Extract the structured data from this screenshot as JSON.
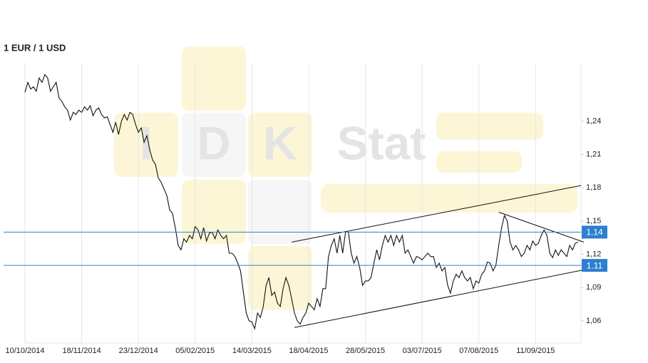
{
  "chart_data": {
    "type": "line",
    "title": "1 EUR / 1 USD",
    "color": "#111111",
    "watermark": [
      "I",
      "D",
      "K",
      "Stat"
    ],
    "categories": [
      "10/10/2014",
      null,
      null,
      null,
      null,
      null,
      null,
      null,
      null,
      null,
      null,
      null,
      null,
      null,
      null,
      null,
      null,
      null,
      null,
      null,
      "18/11/2014",
      null,
      null,
      null,
      null,
      null,
      null,
      null,
      null,
      null,
      null,
      null,
      null,
      null,
      null,
      null,
      null,
      null,
      null,
      null,
      "23/12/2014",
      null,
      null,
      null,
      null,
      null,
      null,
      null,
      null,
      null,
      null,
      null,
      null,
      null,
      null,
      null,
      null,
      null,
      null,
      null,
      "05/02/2015",
      null,
      null,
      null,
      null,
      null,
      null,
      null,
      null,
      null,
      null,
      null,
      null,
      null,
      null,
      null,
      null,
      null,
      null,
      null,
      "14/03/2015",
      null,
      null,
      null,
      null,
      null,
      null,
      null,
      null,
      null,
      null,
      null,
      null,
      null,
      null,
      null,
      null,
      null,
      null,
      null,
      "18/04/2015",
      null,
      null,
      null,
      null,
      null,
      null,
      null,
      null,
      null,
      null,
      null,
      null,
      null,
      null,
      null,
      null,
      null,
      null,
      null,
      "28/05/2015",
      null,
      null,
      null,
      null,
      null,
      null,
      null,
      null,
      null,
      null,
      null,
      null,
      null,
      null,
      null,
      null,
      null,
      null,
      null,
      "03/07/2015",
      null,
      null,
      null,
      null,
      null,
      null,
      null,
      null,
      null,
      null,
      null,
      null,
      null,
      null,
      null,
      null,
      null,
      null,
      null,
      "07/08/2015",
      null,
      null,
      null,
      null,
      null,
      null,
      null,
      null,
      null,
      null,
      null,
      null,
      null,
      null,
      null,
      null,
      null,
      null,
      null,
      "11/09/2015",
      null,
      null,
      null,
      null,
      null,
      null,
      null,
      null,
      null,
      null,
      null,
      null,
      null,
      null,
      null
    ],
    "values": [
      1.266,
      1.275,
      1.269,
      1.271,
      1.267,
      1.279,
      1.275,
      1.282,
      1.279,
      1.267,
      1.271,
      1.275,
      1.261,
      1.258,
      1.253,
      1.25,
      1.241,
      1.248,
      1.246,
      1.25,
      1.248,
      1.253,
      1.25,
      1.254,
      1.245,
      1.25,
      1.252,
      1.246,
      1.243,
      1.244,
      1.237,
      1.23,
      1.239,
      1.228,
      1.24,
      1.246,
      1.241,
      1.248,
      1.246,
      1.237,
      1.23,
      1.234,
      1.221,
      1.227,
      1.214,
      1.205,
      1.201,
      1.189,
      1.185,
      1.179,
      1.173,
      1.16,
      1.157,
      1.144,
      1.128,
      1.124,
      1.134,
      1.131,
      1.137,
      1.134,
      1.145,
      1.142,
      1.134,
      1.144,
      1.132,
      1.139,
      1.14,
      1.134,
      1.142,
      1.137,
      1.134,
      1.137,
      1.121,
      1.121,
      1.118,
      1.112,
      1.105,
      1.086,
      1.067,
      1.06,
      1.059,
      1.053,
      1.067,
      1.063,
      1.073,
      1.092,
      1.099,
      1.083,
      1.086,
      1.076,
      1.073,
      1.089,
      1.099,
      1.092,
      1.08,
      1.067,
      1.06,
      1.057,
      1.063,
      1.067,
      1.076,
      1.073,
      1.07,
      1.08,
      1.073,
      1.089,
      1.089,
      1.118,
      1.128,
      1.134,
      1.121,
      1.137,
      1.121,
      1.14,
      1.14,
      1.121,
      1.112,
      1.118,
      1.108,
      1.092,
      1.096,
      1.096,
      1.099,
      1.112,
      1.124,
      1.115,
      1.128,
      1.137,
      1.131,
      1.137,
      1.128,
      1.137,
      1.131,
      1.137,
      1.121,
      1.124,
      1.118,
      1.112,
      1.118,
      1.117,
      1.115,
      1.118,
      1.121,
      1.118,
      1.118,
      1.108,
      1.112,
      1.105,
      1.108,
      1.092,
      1.085,
      1.096,
      1.102,
      1.099,
      1.105,
      1.099,
      1.096,
      1.099,
      1.089,
      1.096,
      1.094,
      1.102,
      1.105,
      1.113,
      1.112,
      1.105,
      1.11,
      1.128,
      1.144,
      1.155,
      1.15,
      1.131,
      1.124,
      1.128,
      1.124,
      1.118,
      1.121,
      1.128,
      1.124,
      1.132,
      1.128,
      1.13,
      1.137,
      1.142,
      1.137,
      1.121,
      1.117,
      1.124,
      1.119,
      1.124,
      1.121,
      1.118,
      1.128,
      1.124,
      1.13,
      1.131
    ],
    "ylim": [
      1.04,
      1.29
    ],
    "yticks": [
      {
        "value": 1.06,
        "label": "1,06"
      },
      {
        "value": 1.09,
        "label": "1,09"
      },
      {
        "value": 1.12,
        "label": "1,12"
      },
      {
        "value": 1.15,
        "label": "1,15"
      },
      {
        "value": 1.18,
        "label": "1,18"
      },
      {
        "value": 1.21,
        "label": "1,21"
      },
      {
        "value": 1.24,
        "label": "1,24"
      }
    ],
    "levels": [
      1.14,
      1.11
    ],
    "level_color": "#2f7fd0",
    "trendlines": [
      {
        "x": [
          94,
          196
        ],
        "y": [
          1.131,
          1.182
        ]
      },
      {
        "x": [
          95,
          197
        ],
        "y": [
          1.054,
          1.106
        ]
      },
      {
        "x": [
          167,
          197
        ],
        "y": [
          1.158,
          1.131
        ]
      }
    ]
  }
}
